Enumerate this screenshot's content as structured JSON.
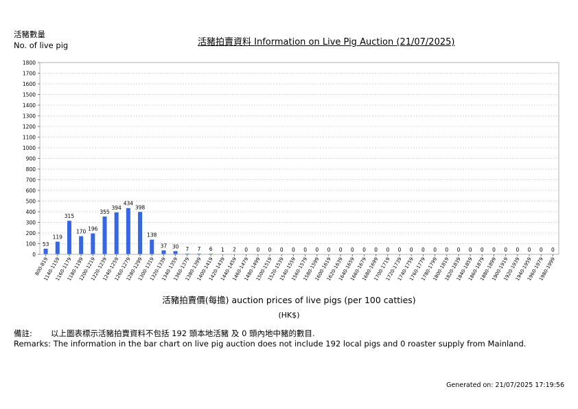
{
  "header": {
    "y_axis_title_zh": "活豬數量",
    "y_axis_title_en": "No. of live pig",
    "title": "活豬拍賣資料 Information on Live Pig Auction (21/07/2025)"
  },
  "x_axis": {
    "title": "活豬拍賣價(每擔) auction prices of live pigs (per 100 catties)",
    "unit": "(HK$)"
  },
  "remarks": {
    "label_zh": "備註:",
    "text_zh": "以上圖表標示活豬拍賣資料不包括 192 頭本地活豬 及 0 頭內地中豬的數目.",
    "text_en": "Remarks: The information in the bar chart on live pig auction does not include 192 local pigs and 0 roaster supply from Mainland."
  },
  "footer": {
    "generated": "Generated on: 21/07/2025 17:19:56"
  },
  "chart_data": {
    "type": "bar",
    "categories": [
      "800-819",
      "1140-1159",
      "1160-1179",
      "1180-1199",
      "1200-1219",
      "1220-1239",
      "1240-1259",
      "1260-1279",
      "1280-1299",
      "1300-1319",
      "1320-1339",
      "1340-1359",
      "1360-1379",
      "1380-1399",
      "1400-1419",
      "1420-1439",
      "1440-1459",
      "1460-1479",
      "1480-1499",
      "1500-1519",
      "1520-1539",
      "1540-1559",
      "1560-1579",
      "1580-1599",
      "1600-1619",
      "1620-1639",
      "1640-1659",
      "1660-1679",
      "1680-1699",
      "1700-1719",
      "1720-1739",
      "1740-1759",
      "1760-1779",
      "1780-1799",
      "1800-1819",
      "1820-1839",
      "1840-1859",
      "1860-1879",
      "1880-1899",
      "1900-1919",
      "1920-1939",
      "1940-1959",
      "1960-1979",
      "1980-1999"
    ],
    "values": [
      53,
      119,
      315,
      170,
      196,
      355,
      394,
      434,
      398,
      138,
      37,
      30,
      7,
      7,
      6,
      1,
      2,
      0,
      0,
      0,
      0,
      0,
      0,
      0,
      0,
      0,
      0,
      0,
      0,
      0,
      0,
      0,
      0,
      0,
      0,
      0,
      0,
      0,
      0,
      0,
      0,
      0,
      0,
      0
    ],
    "yticks": [
      0,
      100,
      200,
      300,
      400,
      500,
      600,
      700,
      800,
      900,
      1000,
      1100,
      1200,
      1300,
      1400,
      1500,
      1600,
      1700,
      1800
    ],
    "ylim": [
      0,
      1800
    ],
    "bar_color": "#3366ee",
    "grid": true
  }
}
